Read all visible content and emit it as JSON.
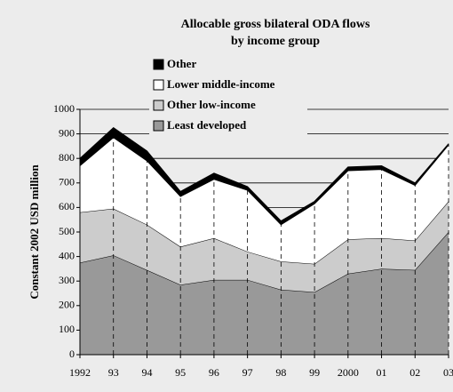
{
  "chart_data": {
    "type": "stacked_area",
    "title": "Allocable gross bilateral ODA flows",
    "subtitle": "by income group",
    "y_label": "Constant 2002 USD million",
    "categories": [
      "1992",
      "93",
      "94",
      "95",
      "96",
      "97",
      "98",
      "99",
      "2000",
      "01",
      "02",
      "03"
    ],
    "series": [
      {
        "name": "Least developed",
        "color": "#999999",
        "values": [
          375,
          405,
          345,
          285,
          305,
          305,
          265,
          255,
          330,
          350,
          345,
          500
        ]
      },
      {
        "name": "Other low-income",
        "color": "#cccccc",
        "values": [
          205,
          190,
          185,
          155,
          170,
          115,
          115,
          115,
          140,
          125,
          120,
          125
        ]
      },
      {
        "name": "Lower middle-income",
        "color": "#ffffff",
        "values": [
          190,
          290,
          260,
          205,
          240,
          250,
          150,
          245,
          280,
          280,
          225,
          230
        ]
      },
      {
        "name": "Other",
        "color": "#000000",
        "values": [
          30,
          40,
          40,
          20,
          25,
          15,
          15,
          10,
          15,
          15,
          10,
          5
        ]
      }
    ],
    "ylim": [
      0,
      1000
    ],
    "yticks": [
      0,
      100,
      200,
      300,
      400,
      500,
      600,
      700,
      800,
      900,
      1000
    ],
    "grid": true
  }
}
